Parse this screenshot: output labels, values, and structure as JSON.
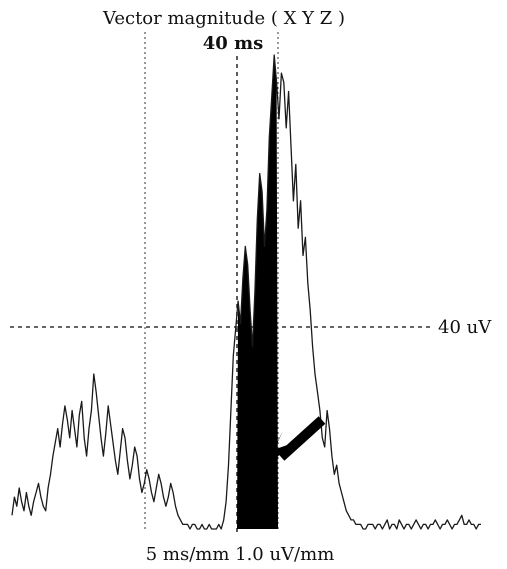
{
  "chart_data": {
    "type": "line",
    "title": "Vector magnitude ( X Y Z )",
    "time_marker_label": "40 ms",
    "amplitude_marker_label": "40 uV",
    "scale_label": "5 ms/mm 1.0 uV/mm",
    "xlabel": "",
    "ylabel": "",
    "annotation": "arrow pointing to shaded terminal low-amplitude segment of the QRS",
    "grid": false,
    "colors": {
      "trace": "#1a1a1a",
      "shaded": "#000000",
      "guides": "#333333"
    },
    "series": [
      {
        "values": [
          3,
          7,
          5,
          9,
          6,
          4,
          8,
          5,
          3,
          6,
          8,
          10,
          7,
          5,
          4,
          9,
          12,
          16,
          19,
          22,
          18,
          23,
          27,
          24,
          20,
          26,
          22,
          18,
          25,
          28,
          20,
          16,
          22,
          26,
          34,
          30,
          25,
          20,
          16,
          21,
          27,
          23,
          19,
          15,
          12,
          17,
          22,
          20,
          15,
          11,
          14,
          18,
          16,
          11,
          8,
          10,
          13,
          11,
          8,
          6,
          9,
          12,
          10,
          7,
          5,
          7,
          10,
          8,
          5,
          3,
          2,
          1,
          1,
          1,
          0,
          1,
          1,
          0,
          0,
          1,
          0,
          0,
          1,
          0,
          0,
          0,
          1,
          0,
          2,
          6,
          14,
          26,
          38,
          44,
          50,
          45,
          55,
          62,
          58,
          48,
          40,
          52,
          68,
          78,
          74,
          62,
          70,
          86,
          95,
          104,
          98,
          90,
          100,
          98,
          88,
          96,
          84,
          72,
          80,
          66,
          72,
          60,
          64,
          54,
          48,
          40,
          34,
          30,
          26,
          20,
          18,
          26,
          22,
          16,
          12,
          14,
          10,
          8,
          6,
          4,
          3,
          2,
          2,
          1,
          1,
          1,
          0,
          0,
          1,
          1,
          1,
          0,
          1,
          1,
          0,
          1,
          2,
          0,
          1,
          1,
          0,
          2,
          1,
          0,
          1,
          1,
          0,
          1,
          2,
          1,
          0,
          1,
          1,
          0,
          1,
          1,
          2,
          1,
          0,
          1,
          1,
          2,
          1,
          0,
          1,
          1,
          2,
          3,
          1,
          1,
          2,
          1,
          1,
          0,
          1,
          1
        ]
      }
    ]
  }
}
